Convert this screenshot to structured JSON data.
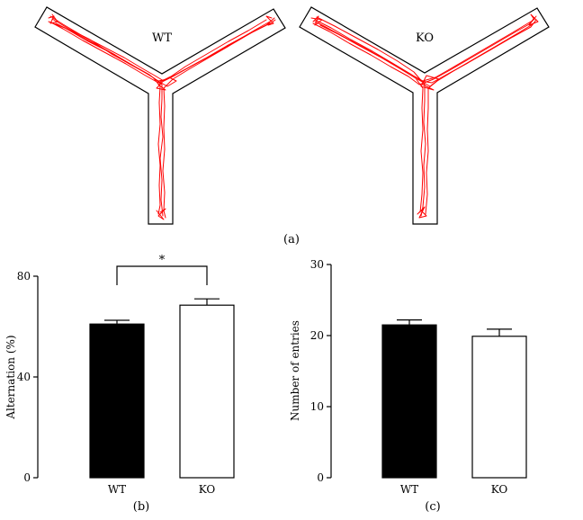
{
  "panel_a": {
    "label": "(a)",
    "mazes": [
      {
        "label": "WT",
        "trace_color": "#ff0000"
      },
      {
        "label": "KO",
        "trace_color": "#ff0000"
      }
    ]
  },
  "chart_data": [
    {
      "type": "bar",
      "panel_label": "(b)",
      "categories": [
        "WT",
        "KO"
      ],
      "values": [
        61,
        68.5
      ],
      "errors": [
        1.5,
        2.5
      ],
      "bar_colors": [
        "#000000",
        "#ffffff"
      ],
      "ylabel": "Alternation (%)",
      "ylim": [
        0,
        80
      ],
      "yticks": [
        0,
        40,
        80
      ],
      "significance": {
        "pair": [
          0,
          1
        ],
        "label": "*"
      },
      "grid": false
    },
    {
      "type": "bar",
      "panel_label": "(c)",
      "categories": [
        "WT",
        "KO"
      ],
      "values": [
        21.5,
        19.9
      ],
      "errors": [
        0.7,
        1.0
      ],
      "bar_colors": [
        "#000000",
        "#ffffff"
      ],
      "ylabel": "Number of entries",
      "ylim": [
        0,
        30
      ],
      "yticks": [
        0,
        10,
        20,
        30
      ],
      "grid": false
    }
  ]
}
